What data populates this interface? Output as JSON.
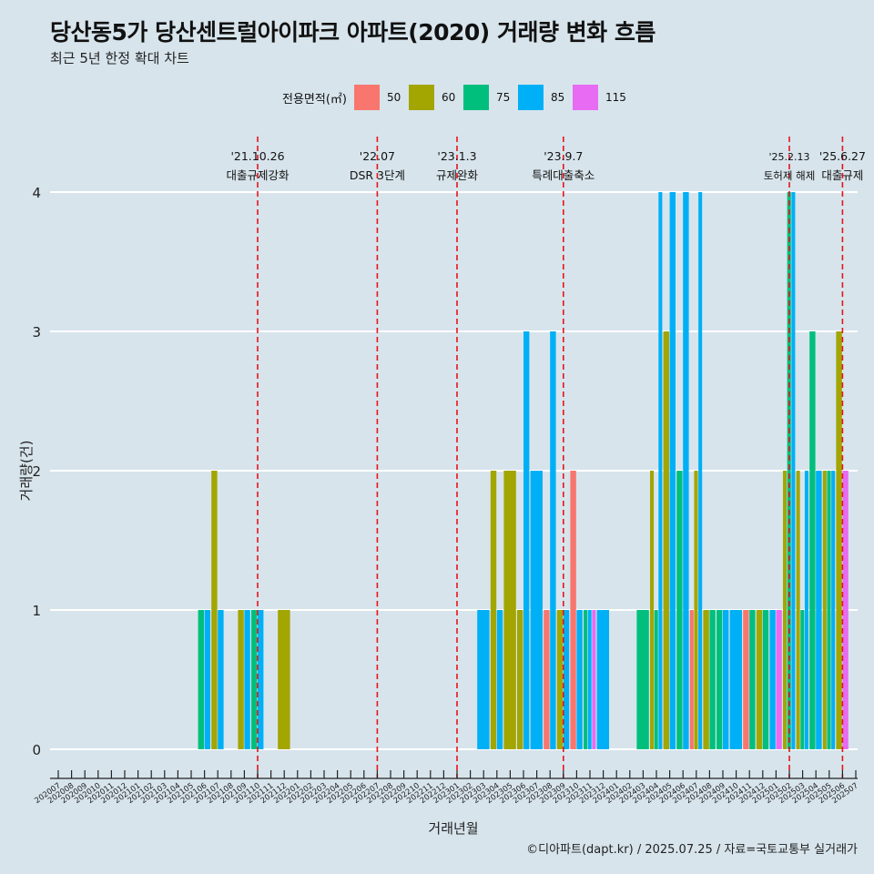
{
  "title": "당산동5가 당산센트럴아이파크 아파트(2020) 거래량 변화 흐름",
  "subtitle": "최근 5년 한정 확대 차트",
  "caption": "©디아파트(dapt.kr) / 2025.07.25 / 자료=국토교통부 실거래가",
  "legend": {
    "title": "전용면적(㎡)",
    "items": [
      {
        "label": "50",
        "color": "#f8766d"
      },
      {
        "label": "60",
        "color": "#a3a500"
      },
      {
        "label": "75",
        "color": "#00bf7d"
      },
      {
        "label": "85",
        "color": "#00b0f6"
      },
      {
        "label": "115",
        "color": "#e76bf3"
      }
    ]
  },
  "chart_data": {
    "type": "bar",
    "xlabel": "거래년월",
    "ylabel": "거래량(건)",
    "ylim": [
      0,
      4
    ],
    "yticks": [
      0,
      1,
      2,
      3,
      4
    ],
    "categories": [
      "202007",
      "202008",
      "202009",
      "202010",
      "202011",
      "202012",
      "202101",
      "202102",
      "202103",
      "202104",
      "202105",
      "202106",
      "202107",
      "202108",
      "202109",
      "202110",
      "202111",
      "202112",
      "202201",
      "202202",
      "202203",
      "202204",
      "202205",
      "202206",
      "202207",
      "202208",
      "202209",
      "202210",
      "202211",
      "202212",
      "202301",
      "202302",
      "202303",
      "202304",
      "202305",
      "202306",
      "202307",
      "202308",
      "202309",
      "202310",
      "202311",
      "202312",
      "202401",
      "202402",
      "202403",
      "202404",
      "202405",
      "202406",
      "202407",
      "202408",
      "202409",
      "202410",
      "202411",
      "202412",
      "202501",
      "202502",
      "202503",
      "202504",
      "202505",
      "202506",
      "202507"
    ],
    "series_names": [
      "50",
      "60",
      "75",
      "85",
      "115"
    ],
    "bars": [
      {
        "month": "202106",
        "values": {
          "75": 1,
          "85": 1
        }
      },
      {
        "month": "202107",
        "values": {
          "60": 2,
          "85": 1
        }
      },
      {
        "month": "202109",
        "values": {
          "60": 1,
          "85": 1
        }
      },
      {
        "month": "202110",
        "values": {
          "75": 1,
          "85": 1
        }
      },
      {
        "month": "202112",
        "values": {
          "60": 1
        }
      },
      {
        "month": "202303",
        "values": {
          "85": 1
        }
      },
      {
        "month": "202304",
        "values": {
          "60": 2,
          "85": 1
        }
      },
      {
        "month": "202305",
        "values": {
          "60": 2
        }
      },
      {
        "month": "202306",
        "values": {
          "60": 1,
          "85": 3
        }
      },
      {
        "month": "202307",
        "values": {
          "85": 2
        }
      },
      {
        "month": "202308",
        "values": {
          "50": 1,
          "85": 3
        }
      },
      {
        "month": "202309",
        "values": {
          "60": 1,
          "85": 1
        }
      },
      {
        "month": "202310",
        "values": {
          "50": 2,
          "85": 1
        }
      },
      {
        "month": "202311",
        "values": {
          "75": 1,
          "85": 1,
          "115": 1
        }
      },
      {
        "month": "202312",
        "values": {
          "85": 1
        }
      },
      {
        "month": "202403",
        "values": {
          "75": 1
        }
      },
      {
        "month": "202404",
        "values": {
          "60": 2,
          "75": 1,
          "85": 4
        }
      },
      {
        "month": "202405",
        "values": {
          "60": 3,
          "85": 4
        }
      },
      {
        "month": "202406",
        "values": {
          "75": 2,
          "85": 4
        }
      },
      {
        "month": "202407",
        "values": {
          "60": 2,
          "50": 1,
          "85": 4
        }
      },
      {
        "month": "202408",
        "values": {
          "60": 1,
          "75": 1
        }
      },
      {
        "month": "202409",
        "values": {
          "75": 1,
          "85": 1
        }
      },
      {
        "month": "202410",
        "values": {
          "85": 1
        }
      },
      {
        "month": "202411",
        "values": {
          "50": 1,
          "75": 1
        }
      },
      {
        "month": "202412",
        "values": {
          "60": 1,
          "75": 1
        }
      },
      {
        "month": "202501",
        "values": {
          "85": 1,
          "115": 1
        }
      },
      {
        "month": "202502",
        "values": {
          "60": 2,
          "75": 4,
          "85": 4
        }
      },
      {
        "month": "202503",
        "values": {
          "60": 2,
          "75": 1,
          "85": 2
        }
      },
      {
        "month": "202504",
        "values": {
          "75": 3,
          "85": 2
        }
      },
      {
        "month": "202505",
        "values": {
          "60": 2,
          "75": 2,
          "85": 2
        }
      },
      {
        "month": "202506",
        "values": {
          "60": 3,
          "115": 2
        }
      }
    ],
    "events": [
      {
        "date": "'21.10.26",
        "label": "대출규제강화",
        "month": "202110"
      },
      {
        "date": "'22.07",
        "label": "DSR 3단계",
        "month": "202207"
      },
      {
        "date": "'23.1.3",
        "label": "규제완화",
        "month": "202301"
      },
      {
        "date": "'23.9.7",
        "label": "특례대출축소",
        "month": "202309"
      },
      {
        "date": "'25.2.13",
        "label": "토허제 해제",
        "month": "202502"
      },
      {
        "date": "'25.6.27",
        "label": "대출규제",
        "month": "202506"
      }
    ]
  }
}
